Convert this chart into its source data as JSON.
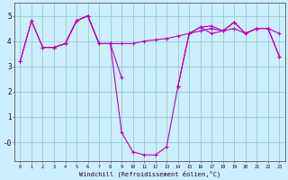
{
  "xlabel": "Windchill (Refroidissement éolien,°C)",
  "background_color": "#cceeff",
  "grid_color": "#99cccc",
  "line_color": "#bb00bb",
  "hours": [
    0,
    1,
    2,
    3,
    4,
    5,
    6,
    7,
    8,
    9,
    10,
    11,
    12,
    13,
    14,
    15,
    16,
    17,
    18,
    19,
    20,
    21,
    22,
    23
  ],
  "line1": [
    3.2,
    4.8,
    3.75,
    3.75,
    3.9,
    4.8,
    5.0,
    3.9,
    3.9,
    2.55,
    null,
    null,
    null,
    null,
    2.2,
    4.3,
    4.55,
    4.6,
    4.4,
    4.75,
    4.3,
    4.5,
    4.5,
    4.3
  ],
  "line2": [
    null,
    null,
    null,
    3.75,
    3.9,
    4.8,
    5.0,
    3.9,
    3.9,
    3.9,
    3.9,
    4.0,
    4.05,
    4.1,
    4.2,
    4.3,
    4.4,
    4.5,
    4.4,
    4.5,
    4.3,
    4.5,
    4.5,
    3.4
  ],
  "line3": [
    3.2,
    4.8,
    3.75,
    3.75,
    3.9,
    4.8,
    5.0,
    3.9,
    3.9,
    0.4,
    -0.38,
    -0.5,
    -0.5,
    -0.18,
    2.2,
    4.3,
    4.55,
    4.3,
    4.4,
    4.75,
    4.3,
    4.5,
    4.5,
    3.4
  ],
  "ylim": [
    -0.75,
    5.5
  ],
  "yticks": [
    0,
    1,
    2,
    3,
    4,
    5
  ],
  "ytick_labels": [
    "-0",
    "1",
    "2",
    "3",
    "4",
    "5"
  ],
  "xlim": [
    -0.5,
    23.5
  ],
  "xticks": [
    0,
    1,
    2,
    3,
    4,
    5,
    6,
    7,
    8,
    9,
    10,
    11,
    12,
    13,
    14,
    15,
    16,
    17,
    18,
    19,
    20,
    21,
    22,
    23
  ]
}
